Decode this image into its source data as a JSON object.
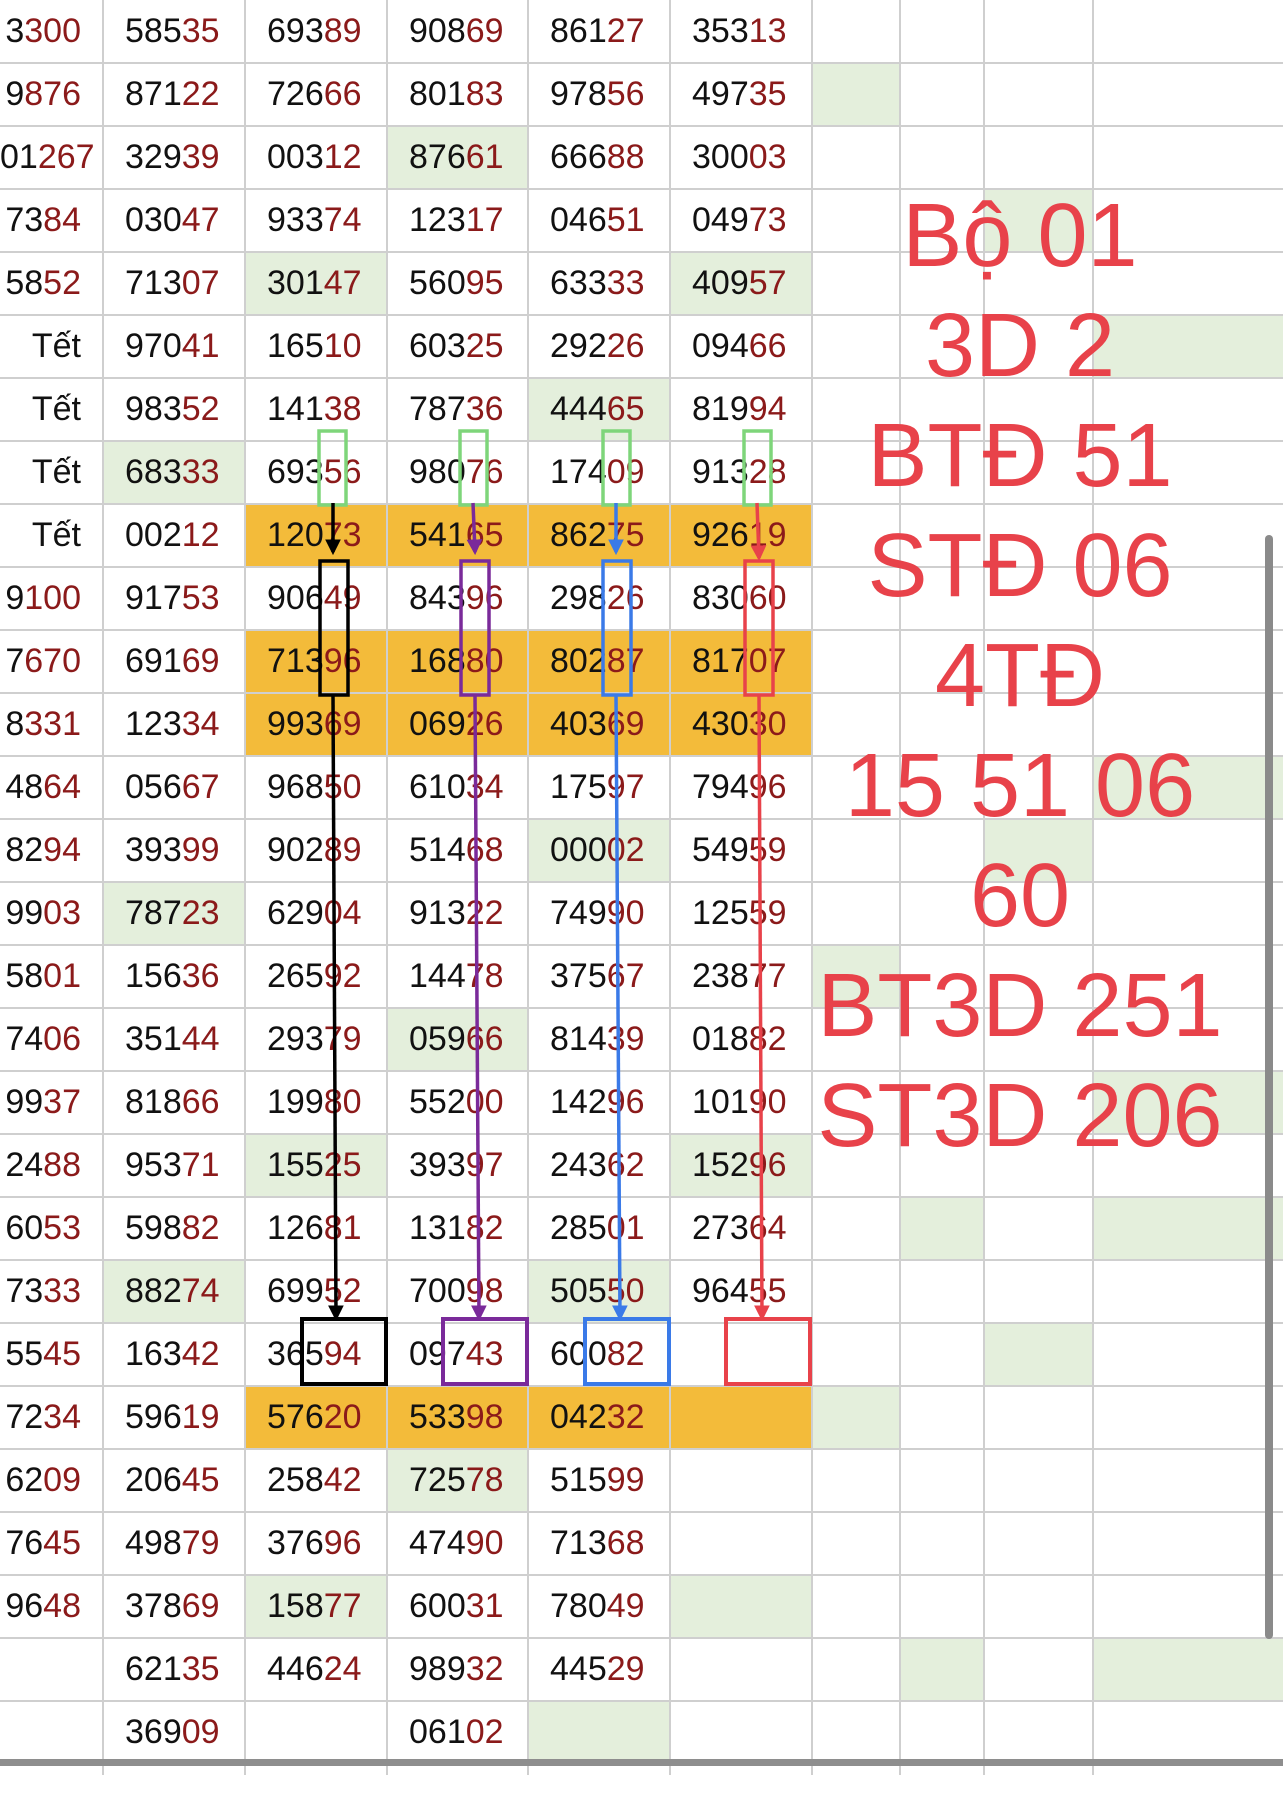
{
  "colors": {
    "green": "#e4efdc",
    "yellow": "#f3bb3a",
    "red_text": "#e8424a",
    "digit_dark": "#111111",
    "digit_red": "#8b1a1a",
    "marker_black": "#000000",
    "marker_purple": "#7a2a9a",
    "marker_blue": "#3a7ae8",
    "marker_red": "#e8424a",
    "marker_green": "#7ed57a"
  },
  "rows": [
    [
      {
        "a": "3",
        "b": "300"
      },
      {
        "a": "585",
        "b": "35"
      },
      {
        "a": "693",
        "b": "89"
      },
      {
        "a": "908",
        "b": "69"
      },
      {
        "a": "861",
        "b": "27"
      },
      {
        "a": "353",
        "b": "13"
      },
      {
        "a": "",
        "b": ""
      },
      {
        "a": "",
        "b": ""
      },
      {
        "a": "",
        "b": ""
      },
      {
        "a": "",
        "b": ""
      }
    ],
    [
      {
        "a": "9",
        "b": "876"
      },
      {
        "a": "871",
        "b": "22"
      },
      {
        "a": "726",
        "b": "66"
      },
      {
        "a": "801",
        "b": "83"
      },
      {
        "a": "978",
        "b": "56"
      },
      {
        "a": "497",
        "b": "35"
      },
      {
        "a": "",
        "b": ""
      },
      {
        "a": "",
        "b": ""
      },
      {
        "a": "",
        "b": ""
      },
      {
        "a": "",
        "b": ""
      }
    ],
    [
      {
        "a": "01",
        "b": "267"
      },
      {
        "a": "329",
        "b": "39"
      },
      {
        "a": "003",
        "b": "12"
      },
      {
        "a": "876",
        "b": "61"
      },
      {
        "a": "666",
        "b": "88"
      },
      {
        "a": "300",
        "b": "03"
      },
      {
        "a": "",
        "b": ""
      },
      {
        "a": "",
        "b": ""
      },
      {
        "a": "",
        "b": ""
      },
      {
        "a": "",
        "b": ""
      }
    ],
    [
      {
        "a": "73",
        "b": "84"
      },
      {
        "a": "030",
        "b": "47"
      },
      {
        "a": "933",
        "b": "74"
      },
      {
        "a": "123",
        "b": "17"
      },
      {
        "a": "046",
        "b": "51"
      },
      {
        "a": "049",
        "b": "73"
      },
      {
        "a": "",
        "b": ""
      },
      {
        "a": "",
        "b": ""
      },
      {
        "a": "",
        "b": ""
      },
      {
        "a": "",
        "b": ""
      }
    ],
    [
      {
        "a": "58",
        "b": "52"
      },
      {
        "a": "713",
        "b": "07"
      },
      {
        "a": "301",
        "b": "47"
      },
      {
        "a": "560",
        "b": "95"
      },
      {
        "a": "633",
        "b": "33"
      },
      {
        "a": "409",
        "b": "57"
      },
      {
        "a": "",
        "b": ""
      },
      {
        "a": "",
        "b": ""
      },
      {
        "a": "",
        "b": ""
      },
      {
        "a": "",
        "b": ""
      }
    ],
    [
      {
        "t": "Tết"
      },
      {
        "a": "970",
        "b": "41"
      },
      {
        "a": "165",
        "b": "10"
      },
      {
        "a": "603",
        "b": "25"
      },
      {
        "a": "292",
        "b": "26"
      },
      {
        "a": "094",
        "b": "66"
      },
      {
        "a": "",
        "b": ""
      },
      {
        "a": "",
        "b": ""
      },
      {
        "a": "",
        "b": ""
      },
      {
        "a": "",
        "b": ""
      }
    ],
    [
      {
        "t": "Tết"
      },
      {
        "a": "983",
        "b": "52"
      },
      {
        "a": "141",
        "b": "38"
      },
      {
        "a": "787",
        "b": "36"
      },
      {
        "a": "444",
        "b": "65"
      },
      {
        "a": "819",
        "b": "94"
      },
      {
        "a": "",
        "b": ""
      },
      {
        "a": "",
        "b": ""
      },
      {
        "a": "",
        "b": ""
      },
      {
        "a": "",
        "b": ""
      }
    ],
    [
      {
        "t": "Tết"
      },
      {
        "a": "683",
        "b": "33"
      },
      {
        "a": "693",
        "b": "56"
      },
      {
        "a": "980",
        "b": "76"
      },
      {
        "a": "174",
        "b": "09"
      },
      {
        "a": "913",
        "b": "28"
      },
      {
        "a": "",
        "b": ""
      },
      {
        "a": "",
        "b": ""
      },
      {
        "a": "",
        "b": ""
      },
      {
        "a": "",
        "b": ""
      }
    ],
    [
      {
        "t": "Tết"
      },
      {
        "a": "002",
        "b": "12"
      },
      {
        "a": "120",
        "b": "73"
      },
      {
        "a": "541",
        "b": "65"
      },
      {
        "a": "862",
        "b": "75"
      },
      {
        "a": "926",
        "b": "19"
      },
      {
        "a": "",
        "b": ""
      },
      {
        "a": "",
        "b": ""
      },
      {
        "a": "",
        "b": ""
      },
      {
        "a": "",
        "b": ""
      }
    ],
    [
      {
        "a": "9",
        "b": "100"
      },
      {
        "a": "917",
        "b": "53"
      },
      {
        "a": "906",
        "b": "49"
      },
      {
        "a": "843",
        "b": "96"
      },
      {
        "a": "298",
        "b": "26"
      },
      {
        "a": "830",
        "b": "60"
      },
      {
        "a": "",
        "b": ""
      },
      {
        "a": "",
        "b": ""
      },
      {
        "a": "",
        "b": ""
      },
      {
        "a": "",
        "b": ""
      }
    ],
    [
      {
        "a": "7",
        "b": "670"
      },
      {
        "a": "691",
        "b": "69"
      },
      {
        "a": "713",
        "b": "96"
      },
      {
        "a": "168",
        "b": "80"
      },
      {
        "a": "802",
        "b": "87"
      },
      {
        "a": "817",
        "b": "07"
      },
      {
        "a": "",
        "b": ""
      },
      {
        "a": "",
        "b": ""
      },
      {
        "a": "",
        "b": ""
      },
      {
        "a": "",
        "b": ""
      }
    ],
    [
      {
        "a": "8",
        "b": "331"
      },
      {
        "a": "123",
        "b": "34"
      },
      {
        "a": "993",
        "b": "69"
      },
      {
        "a": "069",
        "b": "26"
      },
      {
        "a": "403",
        "b": "69"
      },
      {
        "a": "430",
        "b": "30"
      },
      {
        "a": "",
        "b": ""
      },
      {
        "a": "",
        "b": ""
      },
      {
        "a": "",
        "b": ""
      },
      {
        "a": "",
        "b": ""
      }
    ],
    [
      {
        "a": "48",
        "b": "64"
      },
      {
        "a": "056",
        "b": "67"
      },
      {
        "a": "968",
        "b": "50"
      },
      {
        "a": "610",
        "b": "34"
      },
      {
        "a": "175",
        "b": "97"
      },
      {
        "a": "794",
        "b": "96"
      },
      {
        "a": "",
        "b": ""
      },
      {
        "a": "",
        "b": ""
      },
      {
        "a": "",
        "b": ""
      },
      {
        "a": "",
        "b": ""
      }
    ],
    [
      {
        "a": "82",
        "b": "94"
      },
      {
        "a": "393",
        "b": "99"
      },
      {
        "a": "902",
        "b": "89"
      },
      {
        "a": "514",
        "b": "68"
      },
      {
        "a": "000",
        "b": "02"
      },
      {
        "a": "549",
        "b": "59"
      },
      {
        "a": "",
        "b": ""
      },
      {
        "a": "",
        "b": ""
      },
      {
        "a": "",
        "b": ""
      },
      {
        "a": "",
        "b": ""
      }
    ],
    [
      {
        "a": "99",
        "b": "03"
      },
      {
        "a": "787",
        "b": "23"
      },
      {
        "a": "629",
        "b": "04"
      },
      {
        "a": "913",
        "b": "22"
      },
      {
        "a": "749",
        "b": "90"
      },
      {
        "a": "125",
        "b": "59"
      },
      {
        "a": "",
        "b": ""
      },
      {
        "a": "",
        "b": ""
      },
      {
        "a": "",
        "b": ""
      },
      {
        "a": "",
        "b": ""
      }
    ],
    [
      {
        "a": "58",
        "b": "01"
      },
      {
        "a": "156",
        "b": "36"
      },
      {
        "a": "265",
        "b": "92"
      },
      {
        "a": "144",
        "b": "78"
      },
      {
        "a": "375",
        "b": "67"
      },
      {
        "a": "238",
        "b": "77"
      },
      {
        "a": "",
        "b": ""
      },
      {
        "a": "",
        "b": ""
      },
      {
        "a": "",
        "b": ""
      },
      {
        "a": "",
        "b": ""
      }
    ],
    [
      {
        "a": "74",
        "b": "06"
      },
      {
        "a": "351",
        "b": "44"
      },
      {
        "a": "293",
        "b": "79"
      },
      {
        "a": "059",
        "b": "66"
      },
      {
        "a": "814",
        "b": "39"
      },
      {
        "a": "018",
        "b": "82"
      },
      {
        "a": "",
        "b": ""
      },
      {
        "a": "",
        "b": ""
      },
      {
        "a": "",
        "b": ""
      },
      {
        "a": "",
        "b": ""
      }
    ],
    [
      {
        "a": "99",
        "b": "37"
      },
      {
        "a": "818",
        "b": "66"
      },
      {
        "a": "199",
        "b": "80"
      },
      {
        "a": "552",
        "b": "00"
      },
      {
        "a": "142",
        "b": "96"
      },
      {
        "a": "101",
        "b": "90"
      },
      {
        "a": "",
        "b": ""
      },
      {
        "a": "",
        "b": ""
      },
      {
        "a": "",
        "b": ""
      },
      {
        "a": "",
        "b": ""
      }
    ],
    [
      {
        "a": "24",
        "b": "88"
      },
      {
        "a": "953",
        "b": "71"
      },
      {
        "a": "155",
        "b": "25"
      },
      {
        "a": "393",
        "b": "97"
      },
      {
        "a": "243",
        "b": "62"
      },
      {
        "a": "152",
        "b": "96"
      },
      {
        "a": "",
        "b": ""
      },
      {
        "a": "",
        "b": ""
      },
      {
        "a": "",
        "b": ""
      },
      {
        "a": "",
        "b": ""
      }
    ],
    [
      {
        "a": "60",
        "b": "53"
      },
      {
        "a": "598",
        "b": "82"
      },
      {
        "a": "126",
        "b": "81"
      },
      {
        "a": "131",
        "b": "82"
      },
      {
        "a": "285",
        "b": "01"
      },
      {
        "a": "273",
        "b": "64"
      },
      {
        "a": "",
        "b": ""
      },
      {
        "a": "",
        "b": ""
      },
      {
        "a": "",
        "b": ""
      },
      {
        "a": "",
        "b": ""
      }
    ],
    [
      {
        "a": "73",
        "b": "33"
      },
      {
        "a": "882",
        "b": "74"
      },
      {
        "a": "699",
        "b": "52"
      },
      {
        "a": "700",
        "b": "98"
      },
      {
        "a": "505",
        "b": "50"
      },
      {
        "a": "964",
        "b": "55"
      },
      {
        "a": "",
        "b": ""
      },
      {
        "a": "",
        "b": ""
      },
      {
        "a": "",
        "b": ""
      },
      {
        "a": "",
        "b": ""
      }
    ],
    [
      {
        "a": "55",
        "b": "45"
      },
      {
        "a": "163",
        "b": "42"
      },
      {
        "a": "365",
        "b": "94"
      },
      {
        "a": "097",
        "b": "43"
      },
      {
        "a": "600",
        "b": "82"
      },
      {
        "a": "",
        "b": ""
      },
      {
        "a": "",
        "b": ""
      },
      {
        "a": "",
        "b": ""
      },
      {
        "a": "",
        "b": ""
      },
      {
        "a": "",
        "b": ""
      }
    ],
    [
      {
        "a": "72",
        "b": "34"
      },
      {
        "a": "596",
        "b": "19"
      },
      {
        "a": "576",
        "b": "20"
      },
      {
        "a": "533",
        "b": "98"
      },
      {
        "a": "042",
        "b": "32"
      },
      {
        "a": "",
        "b": ""
      },
      {
        "a": "",
        "b": ""
      },
      {
        "a": "",
        "b": ""
      },
      {
        "a": "",
        "b": ""
      },
      {
        "a": "",
        "b": ""
      }
    ],
    [
      {
        "a": "62",
        "b": "09"
      },
      {
        "a": "206",
        "b": "45"
      },
      {
        "a": "258",
        "b": "42"
      },
      {
        "a": "725",
        "b": "78"
      },
      {
        "a": "515",
        "b": "99"
      },
      {
        "a": "",
        "b": ""
      },
      {
        "a": "",
        "b": ""
      },
      {
        "a": "",
        "b": ""
      },
      {
        "a": "",
        "b": ""
      },
      {
        "a": "",
        "b": ""
      }
    ],
    [
      {
        "a": "76",
        "b": "45"
      },
      {
        "a": "498",
        "b": "79"
      },
      {
        "a": "376",
        "b": "96"
      },
      {
        "a": "474",
        "b": "90"
      },
      {
        "a": "713",
        "b": "68"
      },
      {
        "a": "",
        "b": ""
      },
      {
        "a": "",
        "b": ""
      },
      {
        "a": "",
        "b": ""
      },
      {
        "a": "",
        "b": ""
      },
      {
        "a": "",
        "b": ""
      }
    ],
    [
      {
        "a": "96",
        "b": "48"
      },
      {
        "a": "378",
        "b": "69"
      },
      {
        "a": "158",
        "b": "77"
      },
      {
        "a": "600",
        "b": "31"
      },
      {
        "a": "780",
        "b": "49"
      },
      {
        "a": "",
        "b": ""
      },
      {
        "a": "",
        "b": ""
      },
      {
        "a": "",
        "b": ""
      },
      {
        "a": "",
        "b": ""
      },
      {
        "a": "",
        "b": ""
      }
    ],
    [
      {
        "a": "",
        "b": ""
      },
      {
        "a": "621",
        "b": "35"
      },
      {
        "a": "446",
        "b": "24"
      },
      {
        "a": "989",
        "b": "32"
      },
      {
        "a": "445",
        "b": "29"
      },
      {
        "a": "",
        "b": ""
      },
      {
        "a": "",
        "b": ""
      },
      {
        "a": "",
        "b": ""
      },
      {
        "a": "",
        "b": ""
      },
      {
        "a": "",
        "b": ""
      }
    ],
    [
      {
        "a": "",
        "b": ""
      },
      {
        "a": "369",
        "b": "09"
      },
      {
        "a": "",
        "b": ""
      },
      {
        "a": "061",
        "b": "02"
      },
      {
        "a": "",
        "b": ""
      },
      {
        "a": "",
        "b": ""
      },
      {
        "a": "",
        "b": ""
      },
      {
        "a": "",
        "b": ""
      },
      {
        "a": "",
        "b": ""
      },
      {
        "a": "",
        "b": ""
      }
    ]
  ],
  "highlight_map": [
    "..........",
    "......g...",
    "...g......",
    "........g.",
    "..g..g....",
    ".........g",
    "....g.....",
    ".g........",
    "..yyyy....",
    "..........",
    "..yyyy....",
    "..yyyy....",
    ".........g",
    "....g...g.",
    ".g........",
    "......g...",
    "...g......",
    ".........g",
    "..g..g....",
    ".......g.g",
    ".g..g.....",
    "........g.",
    "..yyyyg...",
    "...g......",
    "..........",
    "..g..g....",
    ".......g.g",
    "....g.....",
    ".g........"
  ],
  "annotation_lines": [
    "Bộ 01",
    "3D 2",
    "BTĐ 51",
    "STĐ 06",
    "4TĐ",
    "15 51 06",
    "60",
    "BT3D 251",
    "ST3D 206"
  ]
}
